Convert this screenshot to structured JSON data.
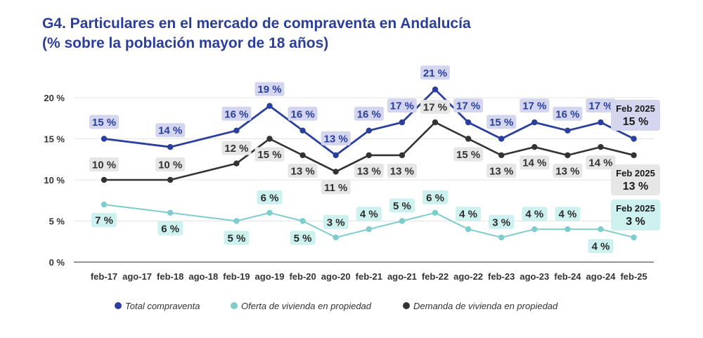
{
  "title": {
    "line1": "G4. Particulares en el mercado de compraventa en Andalucía",
    "line2": "(% sobre la población mayor de 18 años)"
  },
  "colors": {
    "total": "#2a3f9c",
    "total_bg": "#d4d6f0",
    "oferta": "#7ecccc",
    "oferta_bg": "#cdf1ef",
    "demanda": "#333333",
    "demanda_bg": "#e6e6e6",
    "title": "#2a3f9c"
  },
  "chart_data": {
    "type": "line",
    "title": "G4. Particulares en el mercado de compraventa en Andalucía (% sobre la población mayor de 18 años)",
    "categories": [
      "feb-17",
      "ago-17",
      "feb-18",
      "ago-18",
      "feb-19",
      "ago-19",
      "feb-20",
      "ago-20",
      "feb-21",
      "ago-21",
      "feb-22",
      "ago-22",
      "feb-23",
      "ago-23",
      "feb-24",
      "ago-24",
      "feb-25"
    ],
    "y_ticks": [
      "0 %",
      "5 %",
      "10 %",
      "15 %",
      "20 %"
    ],
    "ylim": [
      0,
      21
    ],
    "series": [
      {
        "key": "total",
        "name": "Total compraventa",
        "values": [
          15,
          null,
          14,
          null,
          16,
          19,
          16,
          13,
          16,
          17,
          21,
          17,
          15,
          17,
          16,
          17,
          15
        ],
        "labels": [
          "15 %",
          "",
          "14 %",
          "",
          "16 %",
          "19 %",
          "16 %",
          "13 %",
          "16 %",
          "17 %",
          "21 %",
          "17 %",
          "15 %",
          "17 %",
          "16 %",
          "17 %",
          ""
        ]
      },
      {
        "key": "oferta",
        "name": "Oferta de vivienda en propiedad",
        "values": [
          7,
          null,
          6,
          null,
          5,
          6,
          5,
          3,
          4,
          5,
          6,
          4,
          3,
          4,
          4,
          4,
          3
        ],
        "labels": [
          "7 %",
          "",
          "6 %",
          "",
          "5 %",
          "6 %",
          "5 %",
          "3 %",
          "4 %",
          "5 %",
          "6 %",
          "4 %",
          "3 %",
          "4 %",
          "4 %",
          "4 %",
          ""
        ]
      },
      {
        "key": "demanda",
        "name": "Demanda de vivienda en propiedad",
        "values": [
          10,
          null,
          10,
          null,
          12,
          15,
          13,
          11,
          13,
          13,
          17,
          15,
          13,
          14,
          13,
          14,
          13
        ],
        "labels": [
          "10 %",
          "",
          "10 %",
          "",
          "12 %",
          "15 %",
          "13 %",
          "11 %",
          "13 %",
          "13 %",
          "17 %",
          "15 %",
          "13 %",
          "14 %",
          "13 %",
          "14 %",
          ""
        ]
      }
    ],
    "end_labels": [
      {
        "key": "total",
        "period": "Feb 2025",
        "value": "15 %"
      },
      {
        "key": "demanda",
        "period": "Feb 2025",
        "value": "13 %"
      },
      {
        "key": "oferta",
        "period": "Feb 2025",
        "value": "3 %"
      }
    ],
    "legend": [
      "Total compraventa",
      "Oferta de vivienda en propiedad",
      "Demanda de vivienda en propiedad"
    ]
  }
}
